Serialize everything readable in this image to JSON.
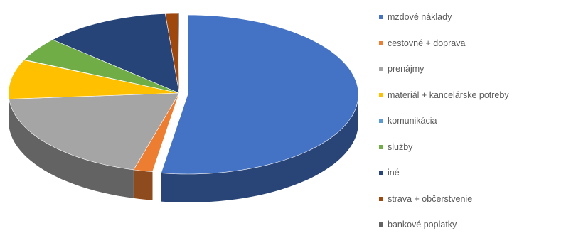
{
  "chart_data": {
    "type": "pie",
    "style": "3d-exploded-first-slice",
    "legend_position": "right",
    "series": [
      {
        "name": "mzdové náklady",
        "value": 52.5,
        "color": "#4472C4"
      },
      {
        "name": "cestovné + doprava",
        "value": 1.8,
        "color": "#ED7D31"
      },
      {
        "name": "prenájmy",
        "value": 19.5,
        "color": "#A5A5A5"
      },
      {
        "name": "materiál + kancelárske potreby",
        "value": 8.0,
        "color": "#FFC000"
      },
      {
        "name": "komunikácia",
        "value": 0.1,
        "color": "#5B9BD5"
      },
      {
        "name": "služby",
        "value": 4.8,
        "color": "#70AD47"
      },
      {
        "name": "iné",
        "value": 12.0,
        "color": "#264478"
      },
      {
        "name": "strava + občerstvenie",
        "value": 1.2,
        "color": "#9E480E"
      },
      {
        "name": "bankové poplatky",
        "value": 0.1,
        "color": "#636363"
      }
    ]
  }
}
